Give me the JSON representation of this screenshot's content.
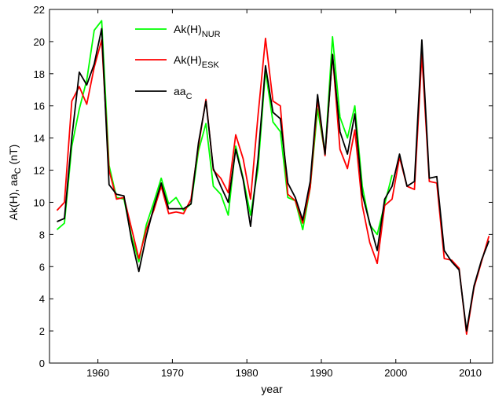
{
  "chart_data": {
    "type": "line",
    "xlabel": "year",
    "ylabel": "Ak(H),  aa",
    "ylabel_sub": "C",
    "ylabel_unit": "  (nT)",
    "xlim": [
      1953.5,
      2013.0
    ],
    "ylim": [
      0,
      22
    ],
    "xticks": [
      1960,
      1970,
      1980,
      1990,
      2000,
      2010
    ],
    "yticks": [
      0,
      2,
      4,
      6,
      8,
      10,
      12,
      14,
      16,
      18,
      20,
      22
    ],
    "grid": false,
    "legend_position": "top-left",
    "series": [
      {
        "name": "Ak(H)",
        "name_sub": "NUR",
        "color": "#00ff00",
        "x": [
          1954.5,
          1955.5,
          1956.5,
          1957.5,
          1958.5,
          1959.5,
          1960.5,
          1961.5,
          1962.5,
          1963.5,
          1964.5,
          1965.5,
          1966.5,
          1967.5,
          1968.5,
          1969.5,
          1970.5,
          1971.5,
          1972.5,
          1973.5,
          1974.5,
          1975.5,
          1976.5,
          1977.5,
          1978.5,
          1979.5,
          1980.5,
          1981.5,
          1982.5,
          1983.5,
          1984.5,
          1985.5,
          1986.5,
          1987.5,
          1988.5,
          1989.5,
          1990.5,
          1991.5,
          1992.5,
          1993.5,
          1994.5,
          1995.5,
          1996.5,
          1997.5,
          1998.5,
          1999.5
        ],
        "y": [
          8.3,
          8.7,
          13.5,
          15.8,
          17.6,
          20.7,
          21.3,
          12.3,
          10.3,
          10.2,
          7.9,
          6.3,
          8.6,
          10.0,
          11.5,
          9.9,
          10.3,
          9.5,
          9.9,
          13.2,
          14.9,
          11.0,
          10.5,
          9.2,
          13.5,
          11.5,
          9.2,
          12.1,
          18.2,
          15.0,
          14.4,
          10.3,
          10.1,
          8.3,
          10.9,
          15.8,
          13.0,
          20.3,
          15.3,
          14.0,
          16.0,
          11.0,
          8.6,
          8.0,
          9.9,
          11.7
        ]
      },
      {
        "name": "Ak(H)",
        "name_sub": "ESK",
        "color": "#ff0000",
        "x": [
          1954.5,
          1955.5,
          1956.5,
          1957.5,
          1958.5,
          1959.5,
          1960.5,
          1961.5,
          1962.5,
          1963.5,
          1964.5,
          1965.5,
          1966.5,
          1967.5,
          1968.5,
          1969.5,
          1970.5,
          1971.5,
          1972.5,
          1973.5,
          1974.5,
          1975.5,
          1976.5,
          1977.5,
          1978.5,
          1979.5,
          1980.5,
          1981.5,
          1982.5,
          1983.5,
          1984.5,
          1985.5,
          1986.5,
          1987.5,
          1988.5,
          1989.5,
          1990.5,
          1991.5,
          1992.5,
          1993.5,
          1994.5,
          1995.5,
          1996.5,
          1997.5,
          1998.5,
          1999.5,
          2000.5,
          2001.5,
          2002.5,
          2003.5,
          2004.5,
          2005.5,
          2006.5,
          2007.5,
          2008.5,
          2009.5,
          2010.5,
          2011.5,
          2012.5
        ],
        "y": [
          9.5,
          10.0,
          16.3,
          17.2,
          16.1,
          18.4,
          20.1,
          12.0,
          10.2,
          10.3,
          8.4,
          6.5,
          8.3,
          9.5,
          11.0,
          9.3,
          9.4,
          9.3,
          10.2,
          13.5,
          16.4,
          12.0,
          11.5,
          10.6,
          14.2,
          12.7,
          10.2,
          15.4,
          20.2,
          16.3,
          16.0,
          10.5,
          10.1,
          8.7,
          10.9,
          16.4,
          12.9,
          19.2,
          13.3,
          12.1,
          14.5,
          9.8,
          7.5,
          6.2,
          9.8,
          10.2,
          12.8,
          11.0,
          10.8,
          19.2,
          11.3,
          11.2,
          6.5,
          6.4,
          5.9,
          1.8,
          4.7,
          6.3,
          7.9
        ]
      },
      {
        "name": "aa",
        "name_sub": "C",
        "color": "#000000",
        "x": [
          1954.5,
          1955.5,
          1956.5,
          1957.5,
          1958.5,
          1959.5,
          1960.5,
          1961.5,
          1962.5,
          1963.5,
          1964.5,
          1965.5,
          1966.5,
          1967.5,
          1968.5,
          1969.5,
          1970.5,
          1971.5,
          1972.5,
          1973.5,
          1974.5,
          1975.5,
          1976.5,
          1977.5,
          1978.5,
          1979.5,
          1980.5,
          1981.5,
          1982.5,
          1983.5,
          1984.5,
          1985.5,
          1986.5,
          1987.5,
          1988.5,
          1989.5,
          1990.5,
          1991.5,
          1992.5,
          1993.5,
          1994.5,
          1995.5,
          1996.5,
          1997.5,
          1998.5,
          1999.5,
          2000.5,
          2001.5,
          2002.5,
          2003.5,
          2004.5,
          2005.5,
          2006.5,
          2007.5,
          2008.5,
          2009.5,
          2010.5,
          2011.5,
          2012.5
        ],
        "y": [
          8.8,
          9.0,
          14.0,
          18.1,
          17.3,
          18.6,
          20.8,
          11.1,
          10.5,
          10.4,
          7.7,
          5.7,
          7.9,
          9.7,
          11.2,
          9.6,
          9.6,
          9.6,
          9.9,
          13.7,
          16.3,
          12.1,
          11.0,
          10.0,
          13.3,
          11.4,
          8.5,
          12.7,
          18.5,
          15.6,
          15.2,
          11.2,
          10.3,
          8.9,
          11.3,
          16.7,
          13.0,
          19.2,
          14.4,
          13.0,
          15.5,
          10.5,
          8.7,
          7.0,
          10.2,
          11.0,
          13.0,
          11.0,
          11.3,
          20.1,
          11.5,
          11.6,
          7.0,
          6.3,
          5.8,
          2.0,
          4.8,
          6.4,
          7.6
        ]
      }
    ]
  }
}
